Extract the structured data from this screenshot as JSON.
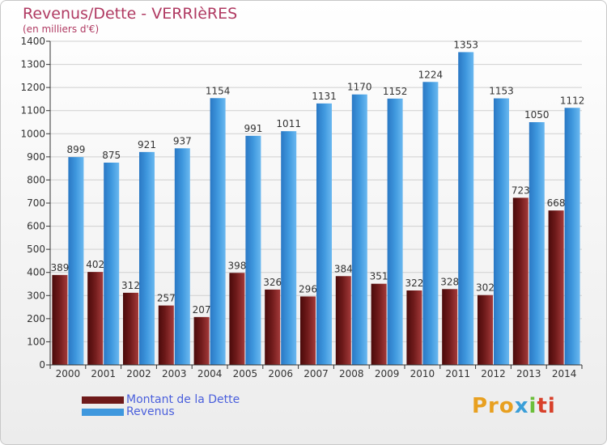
{
  "title": "Revenus/Dette - VERRIèRES",
  "subtitle": "(en milliers d'€)",
  "legend": [
    {
      "label": "Montant de la Dette",
      "color": "#6e1a1a"
    },
    {
      "label": "Revenus",
      "color": "#3f98de"
    }
  ],
  "logo": {
    "p1": "Pro",
    "p2": "x",
    "p3": "i",
    "p4": "ti"
  },
  "colors": {
    "debt": "#6e1a1a",
    "revenue": "#3f98de",
    "grid": "#d0d0d0",
    "axis": "#333333"
  },
  "chart_data": {
    "type": "bar",
    "title": "Revenus/Dette - VERRIèRES",
    "ylabel": "(en milliers d'€)",
    "xlabel": "",
    "ylim": [
      0,
      1400
    ],
    "yticks": [
      0,
      100,
      200,
      300,
      400,
      500,
      600,
      700,
      800,
      900,
      1000,
      1100,
      1200,
      1300,
      1400
    ],
    "grid": true,
    "legend_position": "bottom-left",
    "categories": [
      "2000",
      "2001",
      "2002",
      "2003",
      "2004",
      "2005",
      "2006",
      "2007",
      "2008",
      "2009",
      "2010",
      "2011",
      "2012",
      "2013",
      "2014"
    ],
    "series": [
      {
        "name": "Montant de la Dette",
        "values": [
          389,
          402,
          312,
          257,
          207,
          398,
          326,
          296,
          384,
          351,
          322,
          328,
          302,
          723,
          668
        ]
      },
      {
        "name": "Revenus",
        "values": [
          899,
          875,
          921,
          937,
          1154,
          991,
          1011,
          1131,
          1170,
          1152,
          1224,
          1353,
          1153,
          1050,
          1112
        ]
      }
    ]
  }
}
